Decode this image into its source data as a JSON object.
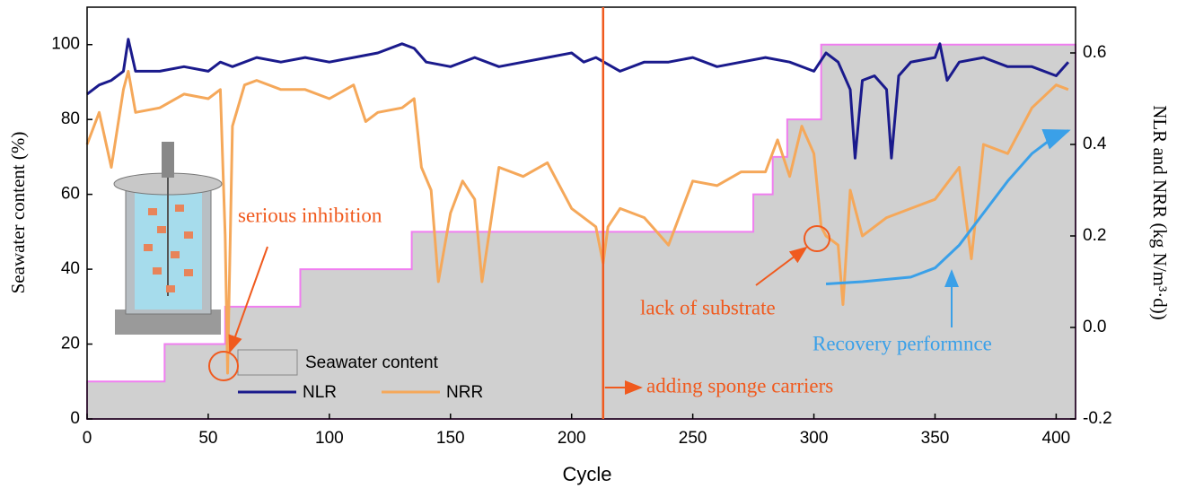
{
  "chart_data": {
    "type": "line",
    "xlabel": "Cycle",
    "ylabel": "Seawater content (%)",
    "y2label": "NLR and NRR (kg N/m³·d))",
    "xlim": [
      0,
      408
    ],
    "xticks": [
      0,
      50,
      100,
      150,
      200,
      250,
      300,
      350,
      400
    ],
    "ylim": [
      0,
      110
    ],
    "yticks": [
      0,
      20,
      40,
      60,
      80,
      100
    ],
    "y2lim": [
      -0.2,
      0.7
    ],
    "y2ticks": [
      -0.2,
      {
        "value": 0,
        "label": "0.0"
      },
      0.2,
      0.4,
      0.6
    ],
    "series": [
      {
        "name": "Seawater content",
        "type": "step-area",
        "color": "#d0d0d0",
        "edge_color": "#f07ef0",
        "x": [
          0,
          32,
          57,
          88,
          134,
          275,
          283,
          289,
          303
        ],
        "values": [
          10,
          20,
          30,
          40,
          50,
          60,
          70,
          80,
          100
        ]
      },
      {
        "name": "NLR",
        "axis": "y2",
        "color": "#1a1a8c",
        "x": [
          0,
          5,
          10,
          15,
          17,
          20,
          30,
          40,
          50,
          55,
          60,
          70,
          80,
          90,
          100,
          110,
          120,
          130,
          135,
          140,
          150,
          160,
          170,
          180,
          190,
          200,
          205,
          210,
          220,
          230,
          240,
          250,
          260,
          270,
          280,
          290,
          300,
          305,
          310,
          315,
          317,
          320,
          325,
          330,
          332,
          335,
          340,
          350,
          352,
          355,
          360,
          370,
          380,
          390,
          400,
          405
        ],
        "values": [
          0.51,
          0.53,
          0.54,
          0.56,
          0.63,
          0.56,
          0.56,
          0.57,
          0.56,
          0.58,
          0.57,
          0.59,
          0.58,
          0.59,
          0.58,
          0.59,
          0.6,
          0.62,
          0.61,
          0.58,
          0.57,
          0.59,
          0.57,
          0.58,
          0.59,
          0.6,
          0.58,
          0.59,
          0.56,
          0.58,
          0.58,
          0.59,
          0.57,
          0.58,
          0.59,
          0.58,
          0.56,
          0.6,
          0.58,
          0.52,
          0.37,
          0.54,
          0.55,
          0.52,
          0.37,
          0.55,
          0.58,
          0.59,
          0.62,
          0.54,
          0.58,
          0.59,
          0.57,
          0.57,
          0.55,
          0.58
        ]
      },
      {
        "name": "NRR",
        "axis": "y2",
        "color": "#f5a85a",
        "x": [
          0,
          5,
          10,
          15,
          17,
          20,
          30,
          40,
          50,
          55,
          57,
          58,
          60,
          65,
          70,
          80,
          90,
          100,
          110,
          115,
          120,
          130,
          135,
          138,
          142,
          145,
          150,
          155,
          160,
          163,
          170,
          180,
          190,
          200,
          210,
          213,
          215,
          220,
          230,
          240,
          250,
          260,
          270,
          280,
          285,
          290,
          295,
          300,
          303,
          305,
          310,
          312,
          315,
          320,
          330,
          340,
          350,
          360,
          365,
          370,
          380,
          390,
          400,
          405
        ],
        "values": [
          0.4,
          0.47,
          0.35,
          0.52,
          0.56,
          0.47,
          0.48,
          0.51,
          0.5,
          0.52,
          0.2,
          -0.1,
          0.44,
          0.53,
          0.54,
          0.52,
          0.52,
          0.5,
          0.53,
          0.45,
          0.47,
          0.48,
          0.5,
          0.35,
          0.3,
          0.1,
          0.25,
          0.32,
          0.28,
          0.1,
          0.35,
          0.33,
          0.36,
          0.26,
          0.22,
          0.14,
          0.22,
          0.26,
          0.24,
          0.18,
          0.32,
          0.31,
          0.34,
          0.34,
          0.41,
          0.33,
          0.44,
          0.38,
          0.22,
          0.2,
          0.18,
          0.05,
          0.3,
          0.2,
          0.24,
          0.26,
          0.28,
          0.35,
          0.15,
          0.4,
          0.38,
          0.48,
          0.53,
          0.52
        ]
      }
    ],
    "annotations": [
      {
        "text": "serious inhibition",
        "color": "#f05a1e"
      },
      {
        "text": "lack of substrate",
        "color": "#f05a1e"
      },
      {
        "text": "adding sponge carriers",
        "color": "#f05a1e",
        "x": 213
      },
      {
        "text": "Recovery performnce",
        "color": "#3aa0e8",
        "axis": "y2",
        "x": [
          305,
          320,
          340,
          350,
          360,
          370,
          380,
          390,
          400,
          405
        ],
        "values": [
          0.095,
          0.1,
          0.11,
          0.13,
          0.18,
          0.25,
          0.32,
          0.38,
          0.42,
          0.43
        ]
      }
    ]
  }
}
